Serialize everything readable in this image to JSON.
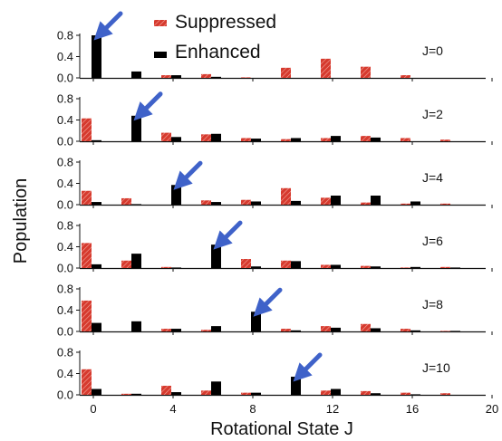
{
  "chart_data": {
    "type": "bar",
    "xlabel": "Rotational State J",
    "ylabel": "Population",
    "x_ticks": [
      "0",
      "4",
      "8",
      "12",
      "16",
      "20"
    ],
    "y_ticks": [
      "0.0",
      "0.4",
      "0.8"
    ],
    "xlim": [
      -1,
      20
    ],
    "ylim": [
      0,
      0.8
    ],
    "legend": {
      "placement": "top-center",
      "entries": [
        {
          "label": "Suppressed",
          "color": "#d63a2e",
          "hatched": true
        },
        {
          "label": "Enhanced",
          "color": "#000000"
        }
      ]
    },
    "colors": {
      "suppressed": "#d63a2e",
      "enhanced": "#000000",
      "arrow": "#3f62c9"
    },
    "panels": [
      {
        "label": "J=0",
        "initial_J": 0,
        "x": [
          0,
          2,
          4,
          6,
          8,
          10,
          12,
          14,
          16,
          18
        ],
        "suppressed": [
          0.0,
          0.0,
          0.05,
          0.07,
          0.01,
          0.19,
          0.36,
          0.21,
          0.05,
          0.0
        ],
        "enhanced": [
          0.8,
          0.12,
          0.05,
          0.02,
          0.0,
          0.0,
          0.0,
          0.0,
          0.0,
          0.0
        ]
      },
      {
        "label": "J=2",
        "initial_J": 2,
        "x": [
          0,
          2,
          4,
          6,
          8,
          10,
          12,
          14,
          16,
          18
        ],
        "suppressed": [
          0.43,
          0.0,
          0.16,
          0.13,
          0.06,
          0.04,
          0.06,
          0.1,
          0.06,
          0.03
        ],
        "enhanced": [
          0.02,
          0.48,
          0.08,
          0.14,
          0.05,
          0.06,
          0.1,
          0.07,
          0.0,
          0.0
        ]
      },
      {
        "label": "J=4",
        "initial_J": 4,
        "x": [
          0,
          2,
          4,
          6,
          8,
          10,
          12,
          14,
          16,
          18
        ],
        "suppressed": [
          0.26,
          0.12,
          0.0,
          0.08,
          0.09,
          0.31,
          0.13,
          0.04,
          0.02,
          0.02
        ],
        "enhanced": [
          0.05,
          0.01,
          0.37,
          0.05,
          0.06,
          0.07,
          0.17,
          0.17,
          0.06,
          0.0
        ]
      },
      {
        "label": "J=6",
        "initial_J": 6,
        "x": [
          0,
          2,
          4,
          6,
          8,
          10,
          12,
          14,
          16,
          18
        ],
        "suppressed": [
          0.47,
          0.14,
          0.02,
          0.0,
          0.17,
          0.14,
          0.06,
          0.04,
          0.01,
          0.02
        ],
        "enhanced": [
          0.07,
          0.27,
          0.01,
          0.44,
          0.03,
          0.13,
          0.06,
          0.03,
          0.02,
          0.01
        ]
      },
      {
        "label": "J=8",
        "initial_J": 8,
        "x": [
          0,
          2,
          4,
          6,
          8,
          10,
          12,
          14,
          16,
          18
        ],
        "suppressed": [
          0.58,
          0.0,
          0.05,
          0.03,
          0.0,
          0.05,
          0.1,
          0.14,
          0.05,
          0.01
        ],
        "enhanced": [
          0.16,
          0.19,
          0.05,
          0.1,
          0.37,
          0.02,
          0.07,
          0.06,
          0.02,
          0.01
        ]
      },
      {
        "label": "J=10",
        "initial_J": 10,
        "x": [
          0,
          2,
          4,
          6,
          8,
          10,
          12,
          14,
          16,
          18
        ],
        "suppressed": [
          0.48,
          0.02,
          0.17,
          0.08,
          0.04,
          0.0,
          0.08,
          0.07,
          0.04,
          0.03
        ],
        "enhanced": [
          0.11,
          0.02,
          0.05,
          0.25,
          0.04,
          0.34,
          0.11,
          0.03,
          0.01,
          0.0
        ]
      }
    ]
  }
}
